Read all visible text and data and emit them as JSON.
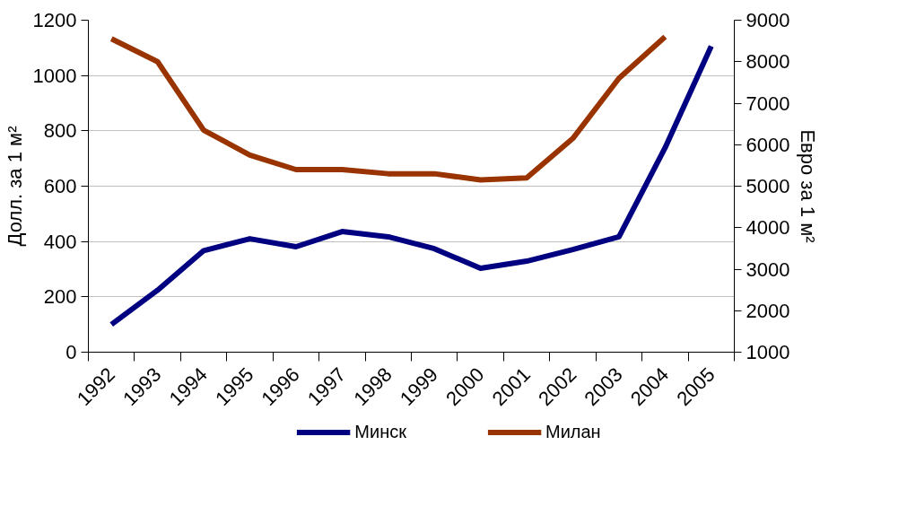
{
  "chart_data": {
    "type": "line",
    "categories": [
      "1992",
      "1993",
      "1994",
      "1995",
      "1996",
      "1997",
      "1998",
      "1999",
      "2000",
      "2001",
      "2002",
      "2003",
      "2004",
      "2005"
    ],
    "series": [
      {
        "name": "Минск",
        "color": "#000080",
        "values": [
          100,
          224,
          367,
          410,
          381,
          436,
          417,
          374,
          303,
          329,
          371,
          417,
          739,
          1106
        ]
      },
      {
        "name": "Милан",
        "color": "#993300",
        "axis": "y2",
        "values": [
          8550,
          8000,
          6350,
          5750,
          5400,
          5400,
          5300,
          5300,
          5150,
          5200,
          6150,
          7600,
          8600,
          null
        ]
      }
    ],
    "ylabel": "Долл. за 1 м²",
    "y2label": "Евро за 1 м²",
    "ylim": [
      0,
      1200
    ],
    "yticks": [
      0,
      200,
      400,
      600,
      800,
      1000,
      1200
    ],
    "y2lim": [
      1000,
      9000
    ],
    "y2ticks": [
      1000,
      2000,
      3000,
      4000,
      5000,
      6000,
      7000,
      8000,
      9000
    ],
    "grid": "y",
    "legend": "bottom",
    "marker": "none",
    "line_style": "solid"
  }
}
